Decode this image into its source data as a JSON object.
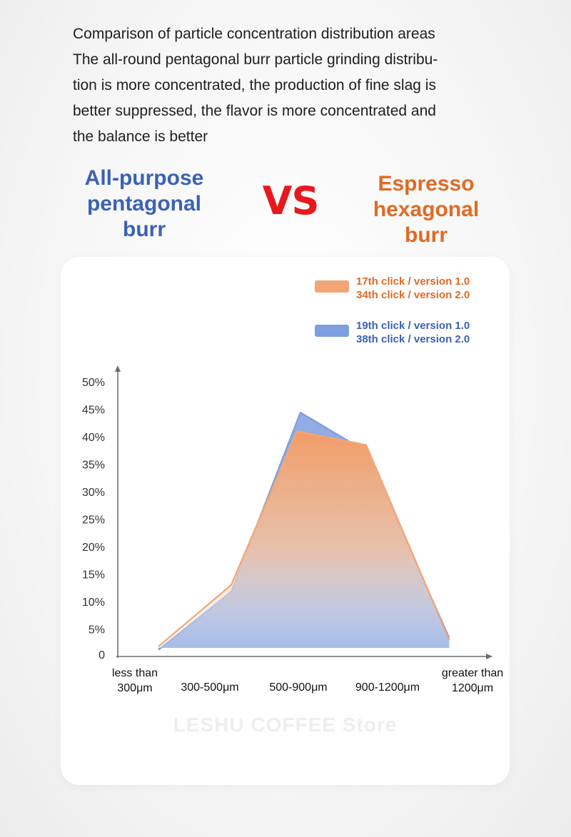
{
  "intro": {
    "title": "Comparison of particle concentration distribution areas",
    "body": "The all-round pentagonal burr particle grinding distribu-\ntion is more concentrated, the production of fine slag is\nbetter suppressed, the flavor is more concentrated and\nthe balance is better"
  },
  "comparison": {
    "left_label": "All-purpose\npentagonal\nburr",
    "vs": "VS",
    "right_label": "Espresso\nhexagonal\nburr"
  },
  "colors": {
    "blue": "#3b62b3",
    "orange": "#e06a25",
    "red": "#e8191d",
    "series_orange_fill": "#f2a575",
    "series_blue_fill": "#7f9edf"
  },
  "watermark": "LESHU COFFEE Store",
  "chart_data": {
    "type": "area",
    "categories": [
      [
        "less than",
        "300μm"
      ],
      [
        "300-500μm"
      ],
      [
        "500-900μm"
      ],
      [
        "900-1200μm"
      ],
      [
        "greater than",
        "1200μm"
      ]
    ],
    "x": [
      0,
      1,
      2,
      2.3,
      3,
      3.7
    ],
    "series": [
      {
        "name": "19th click / version 1.0\n38th click / version 2.0",
        "color": "#7f9edf",
        "points": [
          [
            0,
            1.2
          ],
          [
            1.05,
            11.8
          ],
          [
            2.05,
            44.4
          ],
          [
            3.0,
            37.3
          ],
          [
            4.2,
            3.4
          ]
        ]
      },
      {
        "name": "17th click / version 1.0\n34th click / version 2.0",
        "color": "#f2a575",
        "points": [
          [
            0,
            1.8
          ],
          [
            1.05,
            13.0
          ],
          [
            2.0,
            41.0
          ],
          [
            3.0,
            38.5
          ],
          [
            4.2,
            3.0
          ]
        ]
      }
    ],
    "legend": [
      {
        "line1": "17th click / version 1.0",
        "line2": "34th click / version 2.0",
        "color": "#f2a575",
        "text_color": "#e06a25"
      },
      {
        "line1": "19th click / version 1.0",
        "line2": "38th click / version 2.0",
        "color": "#7f9edf",
        "text_color": "#3b62b3"
      }
    ],
    "y_ticks": [
      "0",
      "5%",
      "10%",
      "15%",
      "20%",
      "25%",
      "30%",
      "35%",
      "40%",
      "45%",
      "50%"
    ],
    "ylim": [
      0,
      50
    ],
    "grid": false,
    "legend_position": "top-right"
  }
}
